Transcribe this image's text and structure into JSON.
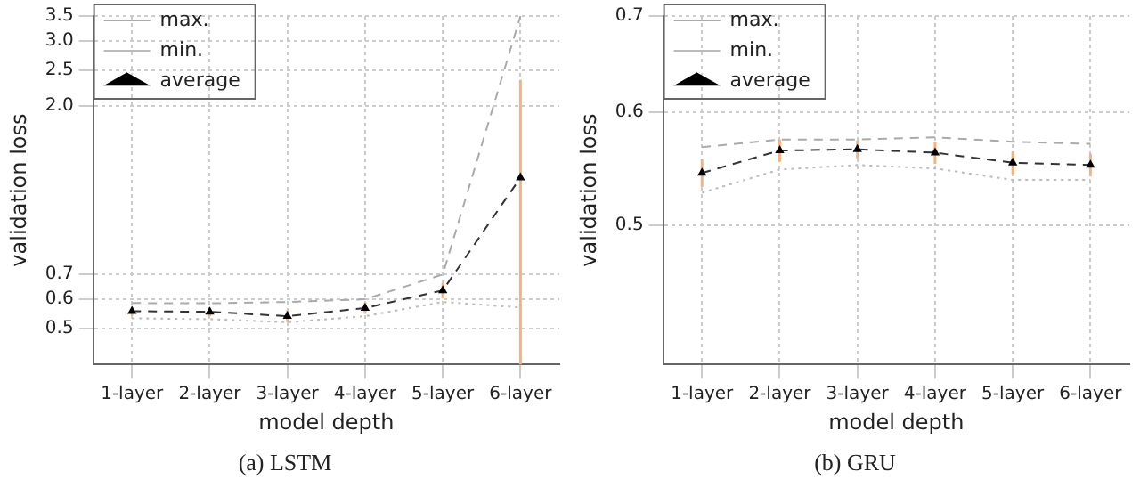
{
  "chart_data": [
    {
      "type": "line",
      "xlabel": "model depth",
      "ylabel": "validation loss",
      "annotations": [
        "(a) LSTM"
      ],
      "categories": [
        "1-layer",
        "2-layer",
        "3-layer",
        "4-layer",
        "5-layer",
        "6-layer"
      ],
      "log": "y",
      "ylim": [
        0.4,
        3.5
      ],
      "yticks": [
        0.5,
        0.6,
        0.7,
        {
          "value": 2,
          "label": "2.0"
        },
        2.5,
        {
          "value": 3,
          "label": "3.0"
        },
        3.5
      ],
      "grid": true,
      "legend": "top left",
      "series": [
        {
          "name": "max.",
          "color": "#aaaaaa",
          "line_style": "dashed",
          "marker": "none",
          "values": [
            0.586,
            0.585,
            0.59,
            0.6,
            0.7,
            3.5
          ]
        },
        {
          "name": "min.",
          "color": "#bbbbbb",
          "line_style": "dotted",
          "marker": "none",
          "values": [
            0.533,
            0.53,
            0.52,
            0.54,
            0.59,
            0.57
          ]
        },
        {
          "name": "average",
          "color": "#333333",
          "line_style": "dashed",
          "marker": "triangle",
          "values": [
            0.557,
            0.555,
            0.54,
            0.568,
            0.634,
            1.28
          ],
          "errors": [
            0.015,
            0.015,
            0.02,
            0.02,
            0.03,
            [
              0.4,
              2.35
            ]
          ]
        }
      ]
    },
    {
      "type": "line",
      "xlabel": "model depth",
      "ylabel": "validation loss",
      "annotations": [
        "(b) GRU"
      ],
      "categories": [
        "1-layer",
        "2-layer",
        "3-layer",
        "4-layer",
        "5-layer",
        "6-layer"
      ],
      "log": "y",
      "ylim": [
        0.4,
        0.7
      ],
      "yticks": [
        0.5,
        0.6,
        0.7
      ],
      "grid": true,
      "legend": "top left",
      "series": [
        {
          "name": "max.",
          "color": "#aaaaaa",
          "line_style": "dashed",
          "marker": "none",
          "values": [
            0.567,
            0.574,
            0.574,
            0.576,
            0.572,
            0.57
          ]
        },
        {
          "name": "min.",
          "color": "#bbbbbb",
          "line_style": "dotted",
          "marker": "none",
          "values": [
            0.527,
            0.547,
            0.551,
            0.548,
            0.538,
            0.538
          ]
        },
        {
          "name": "average",
          "color": "#333333",
          "line_style": "dashed",
          "marker": "triangle",
          "values": [
            0.544,
            0.564,
            0.565,
            0.562,
            0.553,
            0.551
          ],
          "errors": [
            0.012,
            0.01,
            0.008,
            0.01,
            0.01,
            0.01
          ]
        }
      ]
    }
  ]
}
